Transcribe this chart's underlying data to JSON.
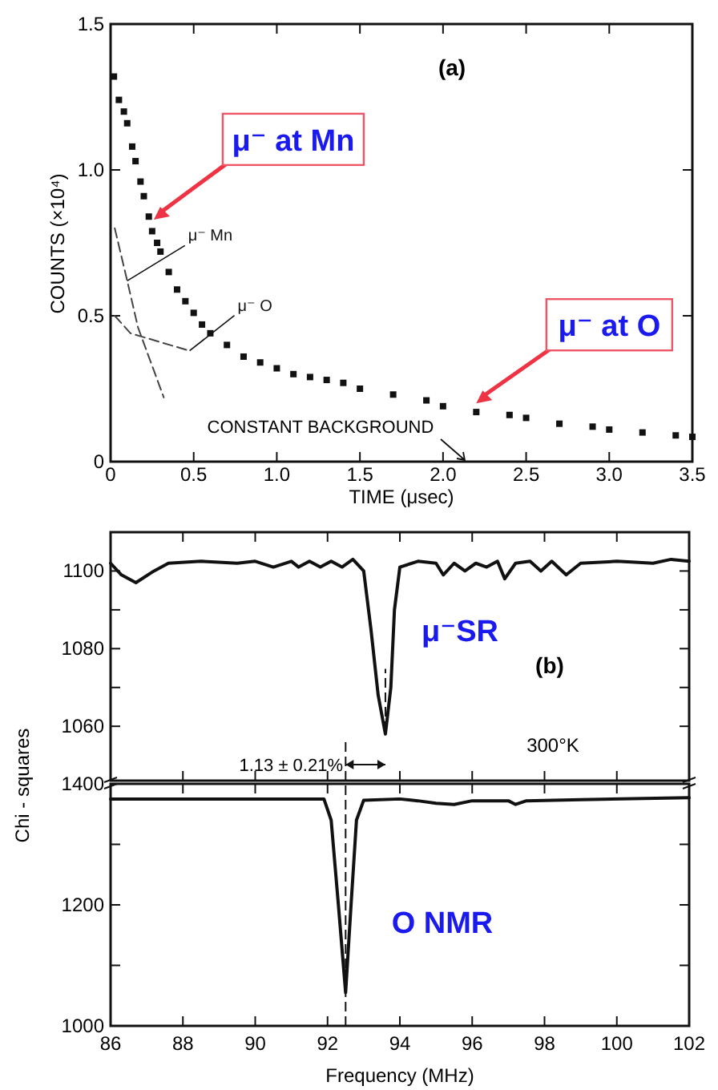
{
  "chart_data": [
    {
      "type": "scatter",
      "title": "(a)",
      "xlabel": "TIME (μsec)",
      "ylabel": "COUNTS (×10⁴)",
      "xlim": [
        0,
        3.5
      ],
      "ylim": [
        0,
        1.5
      ],
      "xticks": [
        0,
        0.5,
        {
          "value": 1,
          "label": "1.0"
        },
        1.5,
        {
          "value": 2,
          "label": "2.0"
        },
        2.5,
        {
          "value": 3,
          "label": "3.0"
        },
        3.5
      ],
      "yticks": [
        0,
        0.5,
        {
          "value": 1,
          "label": "1.0"
        },
        1.5
      ],
      "series": [
        {
          "color": "#111111",
          "marker": "square",
          "x": [
            0.02,
            0.05,
            0.08,
            0.1,
            0.13,
            0.15,
            0.18,
            0.2,
            0.23,
            0.25,
            0.28,
            0.3,
            0.35,
            0.4,
            0.45,
            0.5,
            0.55,
            0.6,
            0.7,
            0.8,
            0.9,
            1.0,
            1.1,
            1.2,
            1.3,
            1.4,
            1.5,
            1.7,
            1.9,
            2.0,
            2.2,
            2.4,
            2.5,
            2.7,
            2.9,
            3.0,
            3.2,
            3.4,
            3.5
          ],
          "values": [
            1.32,
            1.24,
            1.2,
            1.16,
            1.08,
            1.03,
            0.96,
            0.91,
            0.84,
            0.79,
            0.75,
            0.72,
            0.65,
            0.59,
            0.55,
            0.51,
            0.47,
            0.44,
            0.4,
            0.36,
            0.34,
            0.32,
            0.3,
            0.29,
            0.28,
            0.27,
            0.25,
            0.23,
            0.21,
            0.19,
            0.17,
            0.16,
            0.15,
            0.13,
            0.12,
            0.11,
            0.1,
            0.09,
            0.085
          ]
        },
        {
          "type": "line",
          "name": "μ⁻ Mn",
          "marker": "none",
          "color": "#444444",
          "line_style": "dashed",
          "x": [
            0.025,
            0.1,
            0.165,
            0.32
          ],
          "values": [
            0.8,
            0.62,
            0.46,
            0.22
          ]
        },
        {
          "type": "line",
          "name": "μ⁻ O",
          "marker": "none",
          "color": "#444444",
          "line_style": "dashed",
          "x": [
            0.025,
            0.12,
            0.475
          ],
          "values": [
            0.5,
            0.44,
            0.38
          ]
        }
      ],
      "annotations": [
        {
          "text": "μ⁻ at Mn",
          "x": 0.26,
          "y": 0.83
        },
        {
          "text": "μ⁻ at O",
          "x": 2.2,
          "y": 0.2
        },
        "CONSTANT BACKGROUND"
      ]
    },
    {
      "type": "line",
      "title": "(b)",
      "tick_labels": "y",
      "xlim": [
        86,
        102
      ],
      "ylim": [
        1046,
        1110
      ],
      "xticks": [
        86,
        88,
        90,
        92,
        94,
        96,
        98,
        100,
        102
      ],
      "yticks": [
        1060,
        {
          "value": 1070,
          "label": null
        },
        1080,
        {
          "value": 1090,
          "label": null
        },
        1100
      ],
      "series": [
        {
          "color": "#111111",
          "x": [
            86.0,
            86.3,
            86.7,
            87.2,
            87.6,
            88.5,
            89.5,
            90.0,
            90.5,
            91.0,
            91.2,
            91.5,
            91.8,
            92.1,
            92.4,
            92.7,
            93.0,
            93.2,
            93.4,
            93.6,
            93.75,
            93.85,
            94.0,
            94.5,
            95.0,
            95.2,
            95.5,
            95.8,
            96.1,
            96.4,
            96.7,
            96.9,
            97.2,
            97.6,
            97.9,
            98.2,
            98.6,
            99.0,
            100,
            101,
            101.5,
            102
          ],
          "values": [
            1102,
            1099,
            1097,
            1100,
            1102,
            1102.5,
            1102,
            1102.5,
            1101,
            1102.5,
            1101,
            1102.5,
            1101,
            1102.5,
            1101,
            1103,
            1100,
            1085,
            1068,
            1058,
            1070,
            1090,
            1101,
            1102.5,
            1102,
            1099,
            1102,
            1100,
            1102,
            1101,
            1102.5,
            1098,
            1102,
            1102.5,
            1100,
            1102.5,
            1099,
            1102,
            1102.5,
            1102,
            1103,
            1102.5
          ]
        }
      ],
      "ref_lines": [
        {
          "axis": "x",
          "value": 92.5,
          "line_style": "dashed"
        },
        {
          "axis": "x",
          "value": 93.6,
          "line_style": "dashed"
        }
      ],
      "annotations": [
        "μ⁻SR",
        "300°K",
        "1.13 ± 0.21%"
      ]
    },
    {
      "type": "line",
      "xlabel": "Frequency (MHz)",
      "ylabel": "Chi - squares",
      "xlim": [
        86,
        102
      ],
      "ylim": [
        1000,
        1400
      ],
      "xticks": [
        86,
        88,
        90,
        92,
        94,
        96,
        98,
        100,
        102
      ],
      "yticks": [
        1000,
        {
          "value": 1100,
          "label": null
        },
        1200,
        {
          "value": 1300,
          "label": null
        },
        1400
      ],
      "series": [
        {
          "color": "#111111",
          "x": [
            86,
            91.9,
            92.1,
            92.3,
            92.5,
            92.65,
            92.8,
            93.0,
            94,
            94.5,
            95,
            95.5,
            96,
            97,
            97.2,
            97.5,
            99,
            102
          ],
          "values": [
            1375,
            1375,
            1340,
            1200,
            1055,
            1200,
            1340,
            1373,
            1375,
            1372,
            1368,
            1366,
            1372,
            1372,
            1366,
            1372,
            1374,
            1377
          ]
        }
      ],
      "ref_lines": [
        {
          "axis": "x",
          "value": 92.5,
          "line_style": "dashed"
        }
      ],
      "annotations": [
        "O NMR"
      ]
    }
  ]
}
